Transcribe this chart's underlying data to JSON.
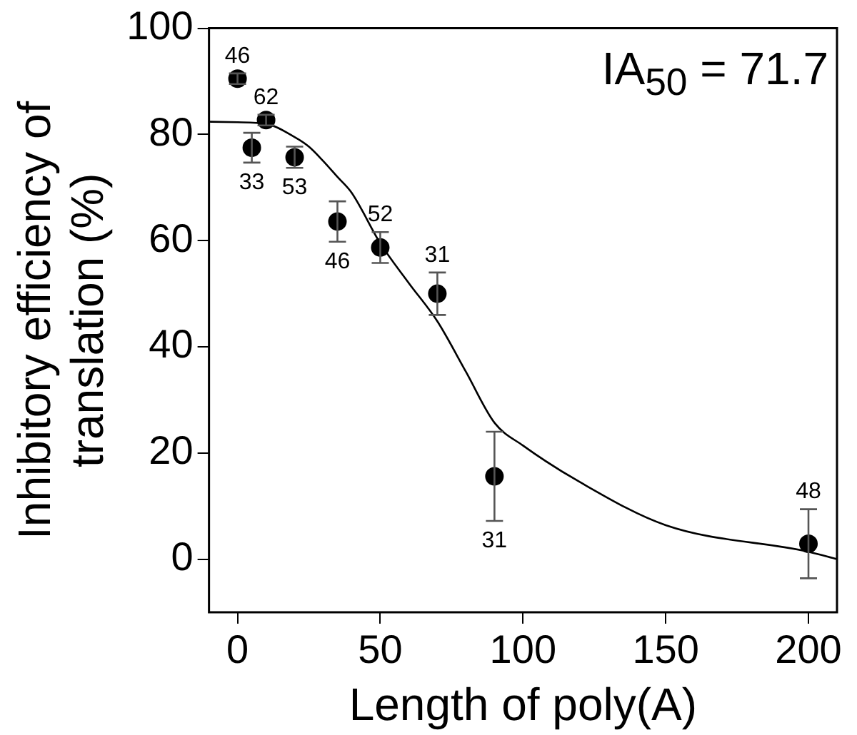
{
  "chart_data": {
    "type": "scatter",
    "xlabel": "Length of poly(A)",
    "ylabel": "Inhibitory efficiency of\ntranslation (%)",
    "xlim": [
      -10,
      210
    ],
    "xticks": [
      0,
      50,
      100,
      150,
      200
    ],
    "ylim": [
      -10,
      100
    ],
    "yticks": [
      0,
      20,
      40,
      60,
      80,
      100
    ],
    "grid": false,
    "legend": false,
    "marker": "circle",
    "series": [
      {
        "color": "#000000",
        "x": [
          0,
          5,
          10,
          20,
          35,
          50,
          70,
          90,
          200
        ],
        "values": [
          90.5,
          77.5,
          82.7,
          75.7,
          63.6,
          58.7,
          50,
          15.6,
          2.9
        ],
        "errors": [
          1,
          2.8,
          1,
          2,
          3.8,
          2.9,
          4,
          8.4,
          6.5
        ]
      },
      {
        "type": "line",
        "color": "#000000",
        "marker": "none",
        "line_style": "solid",
        "x": [
          -10,
          0,
          10,
          20,
          25,
          30,
          35,
          40,
          50,
          60,
          70,
          80,
          90,
          100,
          120,
          150,
          200,
          210
        ],
        "values": [
          82.4,
          82.3,
          82,
          79.5,
          77.7,
          75,
          72,
          69,
          59.5,
          52,
          44.8,
          35.3,
          25.7,
          21.4,
          14.5,
          6.4,
          1.4,
          0
        ]
      }
    ],
    "annotations": [
      {
        "text": "46",
        "x": 0,
        "y": 90.5
      },
      {
        "text": "62",
        "x": 10,
        "y": 82.7
      },
      {
        "text": "33",
        "x": 5,
        "y": 77.5
      },
      {
        "text": "53",
        "x": 20,
        "y": 75.7
      },
      {
        "text": "46",
        "x": 35,
        "y": 63.6
      },
      {
        "text": "52",
        "x": 50,
        "y": 58.7
      },
      {
        "text": "31",
        "x": 70,
        "y": 50
      },
      {
        "text": "31",
        "x": 90,
        "y": 15.6
      },
      {
        "text": "48",
        "x": 200,
        "y": 2.9
      },
      "IA$_{50}$ = 71.7"
    ]
  }
}
